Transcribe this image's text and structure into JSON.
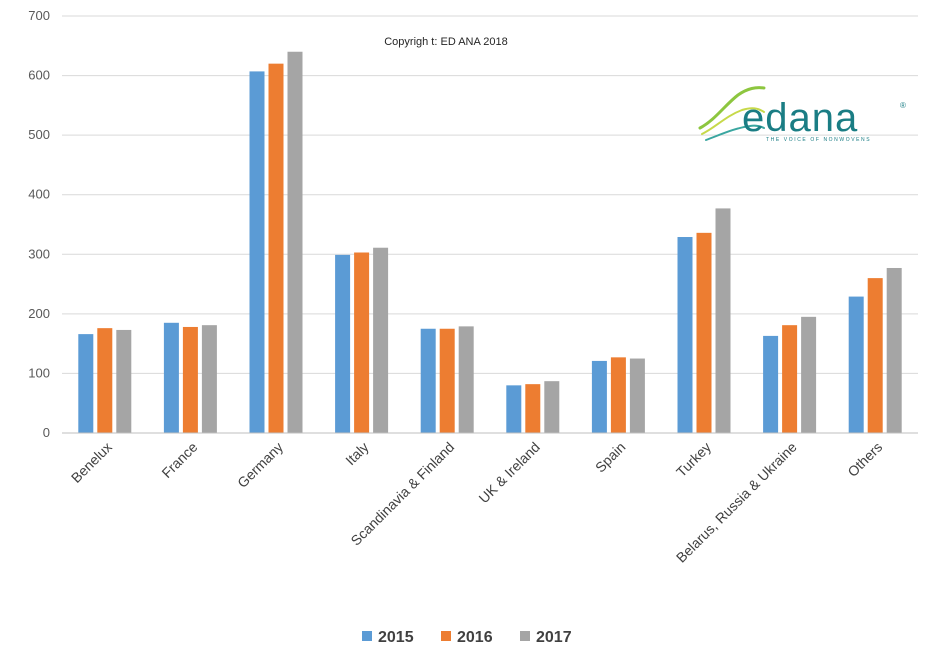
{
  "chart_data": {
    "type": "bar",
    "title": "",
    "xlabel": "",
    "ylabel": "",
    "ylim": [
      0,
      700
    ],
    "yticks": [
      0,
      100,
      200,
      300,
      400,
      500,
      600,
      700
    ],
    "grid": true,
    "legend_position": "bottom",
    "categories": [
      "Benelux",
      "France",
      "Germany",
      "Italy",
      "Scandinavia & Finland",
      "UK & Ireland",
      "Spain",
      "Turkey",
      "Belarus, Russia & Ukraine",
      "Others"
    ],
    "series": [
      {
        "name": "2015",
        "color": "#5b9bd5",
        "values": [
          166,
          185,
          607,
          299,
          175,
          80,
          121,
          329,
          163,
          229
        ]
      },
      {
        "name": "2016",
        "color": "#ed7d31",
        "values": [
          176,
          178,
          620,
          303,
          175,
          82,
          127,
          336,
          181,
          260
        ]
      },
      {
        "name": "2017",
        "color": "#a5a5a5",
        "values": [
          173,
          181,
          640,
          311,
          179,
          87,
          125,
          377,
          195,
          277
        ]
      }
    ],
    "annotation": "Copyrigh t: ED ANA 2018"
  },
  "logo": {
    "word": "edana",
    "registered": "®",
    "tagline": "THE VOICE OF NONWOVENS"
  }
}
